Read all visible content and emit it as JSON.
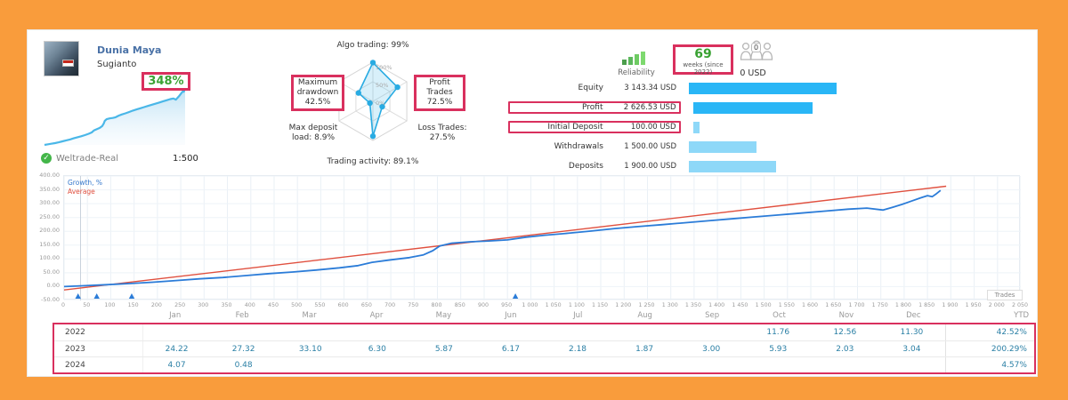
{
  "profile": {
    "name": "Dunia Maya",
    "author": "Sugianto",
    "growth_badge": "348%",
    "server": "Weltrade-Real",
    "leverage": "1:500"
  },
  "radar": {
    "scale": [
      "100%",
      "50%",
      "0%"
    ],
    "axes": [
      {
        "label": "Algo trading: 99%",
        "value": 99,
        "highlight": false
      },
      {
        "label": "Profit Trades 72.5%",
        "value": 72.5,
        "highlight": true
      },
      {
        "label": "Loss Trades: 27.5%",
        "value": 27.5,
        "highlight": false
      },
      {
        "label": "Trading activity: 89.1%",
        "value": 89.1,
        "highlight": false
      },
      {
        "label": "Max deposit load: 8.9%",
        "value": 8.9,
        "highlight": false
      },
      {
        "label": "Maximum drawdown 42.5%",
        "value": 42.5,
        "highlight": true
      }
    ]
  },
  "summary": {
    "reliability_label": "Reliability",
    "weeks": {
      "value": "69",
      "caption": "weeks (since 2022)"
    },
    "funds": {
      "badge": "0",
      "label": "0 USD"
    },
    "rows": [
      {
        "label": "Equity",
        "value": "3 143.34 USD",
        "pct": 100,
        "tone": "strong",
        "highlight": false
      },
      {
        "label": "Profit",
        "value": "2 626.53 USD",
        "pct": 81,
        "tone": "strong",
        "highlight": true
      },
      {
        "label": "Initial Deposit",
        "value": "100.00 USD",
        "pct": 4.5,
        "tone": "light",
        "highlight": true
      },
      {
        "label": "Withdrawals",
        "value": "1 500.00 USD",
        "pct": 46,
        "tone": "light",
        "highlight": false
      },
      {
        "label": "Deposits",
        "value": "1 900.00 USD",
        "pct": 59,
        "tone": "light",
        "highlight": false
      }
    ]
  },
  "chart": {
    "legend": [
      {
        "label": "Growth, %",
        "color": "#3377cc"
      },
      {
        "label": "Average",
        "color": "#e0503f"
      }
    ],
    "x_axis_label": "Trades",
    "y_ticks": [
      "400.00",
      "350.00",
      "300.00",
      "250.00",
      "200.00",
      "150.00",
      "100.00",
      "50.00",
      "0.00",
      "-50.00"
    ],
    "x_ticks": [
      "0",
      "50",
      "100",
      "150",
      "200",
      "250",
      "300",
      "350",
      "400",
      "450",
      "500",
      "550",
      "600",
      "650",
      "700",
      "750",
      "800",
      "850",
      "900",
      "950",
      "1 000",
      "1 050",
      "1 100",
      "1 150",
      "1 200",
      "1 250",
      "1 300",
      "1 350",
      "1 400",
      "1 450",
      "1 500",
      "1 550",
      "1 600",
      "1 650",
      "1 700",
      "1 750",
      "1 800",
      "1 850",
      "1 900",
      "1 950",
      "2 000",
      "2 050"
    ]
  },
  "chart_data": {
    "type": "line",
    "title": "Growth, %",
    "xlabel": "Trades",
    "x_range": [
      0,
      2050
    ],
    "y_range": [
      -50,
      400
    ],
    "series": [
      {
        "name": "Growth, %",
        "color": "#2b7cd8",
        "points": [
          [
            0,
            0
          ],
          [
            40,
            3
          ],
          [
            90,
            7
          ],
          [
            140,
            11
          ],
          [
            190,
            16
          ],
          [
            240,
            22
          ],
          [
            290,
            28
          ],
          [
            340,
            33
          ],
          [
            390,
            40
          ],
          [
            440,
            47
          ],
          [
            490,
            53
          ],
          [
            540,
            60
          ],
          [
            590,
            68
          ],
          [
            630,
            76
          ],
          [
            660,
            88
          ],
          [
            700,
            97
          ],
          [
            740,
            105
          ],
          [
            770,
            115
          ],
          [
            790,
            130
          ],
          [
            805,
            147
          ],
          [
            830,
            157
          ],
          [
            870,
            162
          ],
          [
            910,
            165
          ],
          [
            950,
            169
          ],
          [
            990,
            179
          ],
          [
            1030,
            186
          ],
          [
            1080,
            193
          ],
          [
            1130,
            201
          ],
          [
            1180,
            210
          ],
          [
            1230,
            217
          ],
          [
            1280,
            224
          ],
          [
            1330,
            231
          ],
          [
            1380,
            238
          ],
          [
            1430,
            245
          ],
          [
            1480,
            252
          ],
          [
            1530,
            259
          ],
          [
            1580,
            266
          ],
          [
            1630,
            273
          ],
          [
            1680,
            280
          ],
          [
            1720,
            284
          ],
          [
            1755,
            277
          ],
          [
            1775,
            287
          ],
          [
            1795,
            297
          ],
          [
            1815,
            309
          ],
          [
            1835,
            321
          ],
          [
            1850,
            329
          ],
          [
            1860,
            325
          ],
          [
            1870,
            337
          ],
          [
            1878,
            348
          ]
        ]
      },
      {
        "name": "Average",
        "color": "#e0503f",
        "points": [
          [
            0,
            -12
          ],
          [
            1890,
            363
          ]
        ]
      }
    ],
    "event_marker_trades": [
      30,
      70,
      145,
      967
    ]
  },
  "table": {
    "months": [
      "Jan",
      "Feb",
      "Mar",
      "Apr",
      "May",
      "Jun",
      "Jul",
      "Aug",
      "Sep",
      "Oct",
      "Nov",
      "Dec"
    ],
    "ytd_label": "YTD",
    "rows": [
      {
        "year": "2022",
        "values": [
          "",
          "",
          "",
          "",
          "",
          "",
          "",
          "",
          "",
          "11.76",
          "12.56",
          "11.30"
        ],
        "ytd": "42.52%"
      },
      {
        "year": "2023",
        "values": [
          "24.22",
          "27.32",
          "33.10",
          "6.30",
          "5.87",
          "6.17",
          "2.18",
          "1.87",
          "3.00",
          "5.93",
          "2.03",
          "3.04"
        ],
        "ytd": "200.29%"
      },
      {
        "year": "2024",
        "values": [
          "4.07",
          "0.48",
          "",
          "",
          "",
          "",
          "",
          "",
          "",
          "",
          "",
          ""
        ],
        "ytd": "4.57%"
      }
    ]
  },
  "colors": {
    "frame_orange": "#f99c3c",
    "annotation_crimson": "#d9305e",
    "positive_green": "#3aa233",
    "bar_strong_blue": "#29b6f6",
    "bar_light_blue": "#8ed8f8",
    "growth_line_blue": "#2b7cd8",
    "average_line_red": "#e0503f",
    "radar_blue": "#29abe2",
    "table_value_teal": "#2a7fa5"
  }
}
